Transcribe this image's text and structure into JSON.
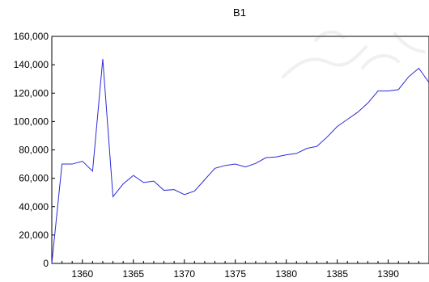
{
  "chart_data": {
    "type": "line",
    "title": "B1",
    "xlabel": "",
    "ylabel": "",
    "xlim": [
      1357,
      1394
    ],
    "ylim": [
      0,
      160000
    ],
    "x_ticks": [
      1360,
      1365,
      1370,
      1375,
      1380,
      1385,
      1390
    ],
    "x_tick_labels": [
      "1360",
      "1365",
      "1370",
      "1375",
      "1380",
      "1385",
      "1390"
    ],
    "y_ticks": [
      0,
      20000,
      40000,
      60000,
      80000,
      100000,
      120000,
      140000,
      160000
    ],
    "y_tick_labels": [
      "0",
      "20,000",
      "40,000",
      "60,000",
      "80,000",
      "100,000",
      "120,000",
      "140,000",
      "160,000"
    ],
    "grid": false,
    "line_color": "#2b2bd8",
    "series": [
      {
        "x": [
          1357,
          1358,
          1359,
          1360,
          1361,
          1362,
          1363,
          1364,
          1365,
          1366,
          1367,
          1368,
          1369,
          1370,
          1371,
          1372,
          1373,
          1374,
          1375,
          1376,
          1377,
          1378,
          1379,
          1380,
          1381,
          1382,
          1383,
          1384,
          1385,
          1386,
          1387,
          1388,
          1389,
          1390,
          1391,
          1392,
          1393,
          1394
        ],
        "values": [
          0,
          70000,
          70000,
          72000,
          65000,
          144000,
          47000,
          56000,
          62000,
          57000,
          58000,
          51500,
          52000,
          48500,
          51000,
          59000,
          67000,
          69000,
          70000,
          68000,
          70500,
          74500,
          75000,
          76500,
          77500,
          81000,
          82500,
          89000,
          96500,
          101500,
          106500,
          113000,
          121500,
          121500,
          122500,
          131500,
          137500,
          127500
        ]
      }
    ]
  }
}
